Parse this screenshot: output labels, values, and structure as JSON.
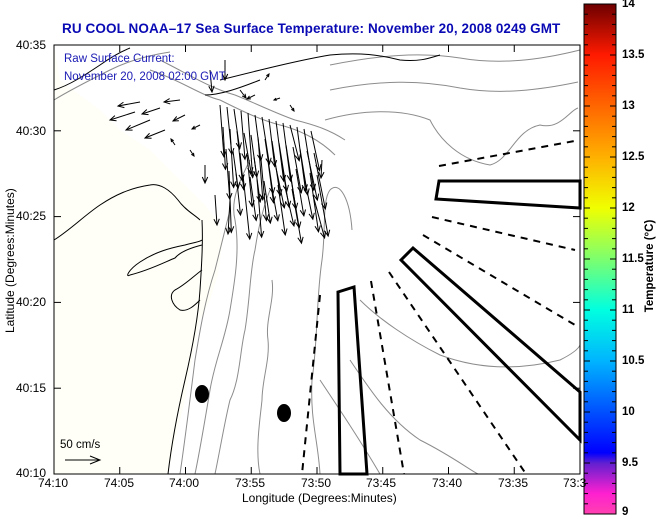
{
  "title": "RU COOL  NOAA–17  Sea Surface Temperature:  November 20, 2008 0249 GMT",
  "overlay": {
    "line1": "Raw Surface Current:",
    "line2": "November 20, 2008 02:00 GMT"
  },
  "axes": {
    "xlabel": "Longitude (Degrees:Minutes)",
    "ylabel": "Latitude (Degrees:Minutes)",
    "xticks": [
      "74:10",
      "74:05",
      "74:00",
      "73:55",
      "73:50",
      "73:45",
      "73:40",
      "73:35",
      "73:3"
    ],
    "yticks": [
      "40:35",
      "40:30",
      "40:25",
      "40:20",
      "40:15",
      "40:10"
    ]
  },
  "scale_arrow": {
    "label": "50 cm/s"
  },
  "colorbar": {
    "title": "Temperature (°C)",
    "ticks": [
      "14",
      "13.5",
      "13",
      "12.5",
      "12",
      "11.5",
      "11",
      "10.5",
      "10",
      "9.5",
      "9"
    ],
    "range": [
      9,
      14
    ],
    "stops": [
      {
        "value": 14,
        "color": "#6e0000"
      },
      {
        "value": 13.5,
        "color": "#ff1a00"
      },
      {
        "value": 13,
        "color": "#ff6600"
      },
      {
        "value": 12.5,
        "color": "#ffb000"
      },
      {
        "value": 12,
        "color": "#f0ff00"
      },
      {
        "value": 11.5,
        "color": "#7dff6e"
      },
      {
        "value": 11,
        "color": "#00ffe0"
      },
      {
        "value": 10.5,
        "color": "#00b4ff"
      },
      {
        "value": 10,
        "color": "#0050ff"
      },
      {
        "value": 9.6,
        "color": "#0000ff"
      },
      {
        "value": 9.5,
        "color": "#6020d0"
      },
      {
        "value": 9.2,
        "color": "#ff20d0"
      },
      {
        "value": 9,
        "color": "#ff40b0"
      }
    ]
  },
  "colors": {
    "title": "#0a0ab4",
    "overlay_text": "#1a1ab4",
    "coastline": "#000000",
    "bathymetry": "#8c8c8c",
    "land": "#fffff8"
  },
  "stations": [
    {
      "name": "station-1"
    },
    {
      "name": "station-2"
    }
  ]
}
